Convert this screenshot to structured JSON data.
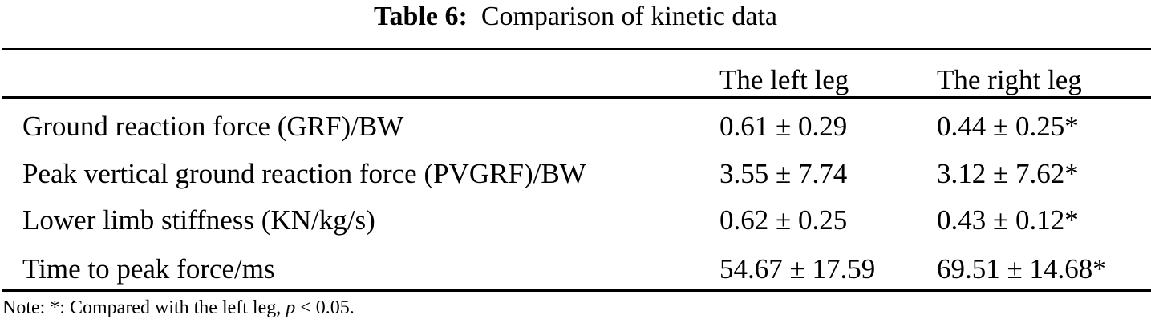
{
  "title": {
    "label": "Table 6:",
    "text": "Comparison of kinetic data"
  },
  "columns": [
    "",
    "The left leg",
    "The right leg"
  ],
  "rows": [
    {
      "label": "Ground reaction force (GRF)/BW",
      "left": "0.61 ± 0.29",
      "right": "0.44 ± 0.25*"
    },
    {
      "label": "Peak vertical ground reaction force (PVGRF)/BW",
      "left": "3.55 ± 7.74",
      "right": "3.12 ± 7.62*"
    },
    {
      "label": "Lower limb stiffness (KN/kg/s)",
      "left": "0.62 ± 0.25",
      "right": "0.43 ± 0.12*"
    },
    {
      "label": "Time to peak force/ms",
      "left": "54.67 ± 17.59",
      "right": "69.51 ± 14.68*"
    }
  ],
  "note": {
    "prefix": "Note: *: Compared with the left leg, ",
    "p": "p",
    "suffix": " < 0.05."
  }
}
